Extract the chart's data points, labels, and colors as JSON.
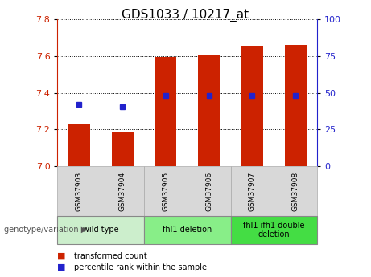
{
  "title": "GDS1033 / 10217_at",
  "samples": [
    "GSM37903",
    "GSM37904",
    "GSM37905",
    "GSM37906",
    "GSM37907",
    "GSM37908"
  ],
  "bar_values": [
    7.23,
    7.19,
    7.595,
    7.61,
    7.655,
    7.66
  ],
  "dot_values": [
    7.335,
    7.325,
    7.385,
    7.385,
    7.385,
    7.385
  ],
  "bar_bottom": 7.0,
  "ylim": [
    7.0,
    7.8
  ],
  "yticks_left": [
    7.0,
    7.2,
    7.4,
    7.6,
    7.8
  ],
  "yticks_right": [
    0,
    25,
    50,
    75,
    100
  ],
  "bar_color": "#cc2200",
  "dot_color": "#2222cc",
  "groups": [
    {
      "label": "wild type",
      "start": 0,
      "end": 2,
      "color": "#cceecc"
    },
    {
      "label": "fhl1 deletion",
      "start": 2,
      "end": 4,
      "color": "#88ee88"
    },
    {
      "label": "fhl1 ifh1 double\ndeletion",
      "start": 4,
      "end": 6,
      "color": "#44dd44"
    }
  ],
  "genotype_label": "genotype/variation",
  "legend_bar_label": "transformed count",
  "legend_dot_label": "percentile rank within the sample",
  "title_fontsize": 11,
  "tick_fontsize": 8,
  "label_fontsize": 7
}
